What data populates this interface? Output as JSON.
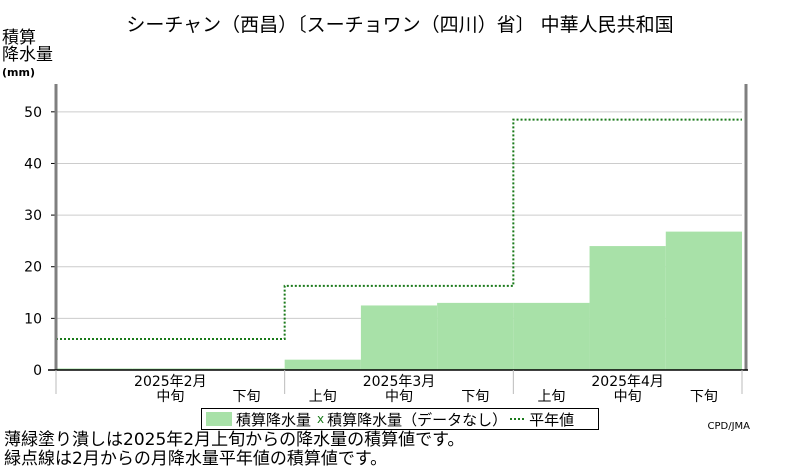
{
  "title": "シーチャン（西昌）〔スーチョワン（四川）省〕 中華人民共和国",
  "ylabel_lines": [
    "積算",
    "降水量"
  ],
  "yunit": "(mm)",
  "credit": "CPD/JMA",
  "notes": [
    "薄緑塗り潰しは2025年2月上旬からの降水量の積算値です。",
    "緑点線は2月からの月降水量平年値の積算値です。"
  ],
  "legend": {
    "bar_label": "積算降水量",
    "mark": "x",
    "missing_label": "積算降水量（データなし）",
    "normal_label": "平年値"
  },
  "colors": {
    "bar": "#a8e1a8",
    "normal_line": "#1a7a1a",
    "axis": "#7f7f7f"
  },
  "chart_data": {
    "type": "area",
    "x": [
      "2025年2月上旬",
      "2025年2月中旬",
      "2025年2月下旬",
      "2025年3月上旬",
      "2025年3月中旬",
      "2025年3月下旬",
      "2025年4月上旬",
      "2025年4月中旬",
      "2025年4月下旬"
    ],
    "xtick_labels": [
      "",
      "中旬",
      "下旬",
      "上旬",
      "中旬",
      "下旬",
      "上旬",
      "中旬",
      "下旬"
    ],
    "month_labels": [
      "2025年2月",
      "2025年3月",
      "2025年4月"
    ],
    "series": [
      {
        "name": "積算降水量",
        "values": [
          0.3,
          0.3,
          0.3,
          2.0,
          12.5,
          13.0,
          13.0,
          24.0,
          26.8
        ]
      },
      {
        "name": "平年値",
        "values": [
          6.0,
          6.0,
          6.0,
          16.3,
          16.3,
          16.3,
          48.5,
          48.5,
          48.5
        ]
      }
    ],
    "yticks": [
      0,
      10,
      20,
      30,
      40,
      50
    ],
    "ylim": [
      0,
      55
    ],
    "grid": true,
    "legend_position": "bottom"
  }
}
